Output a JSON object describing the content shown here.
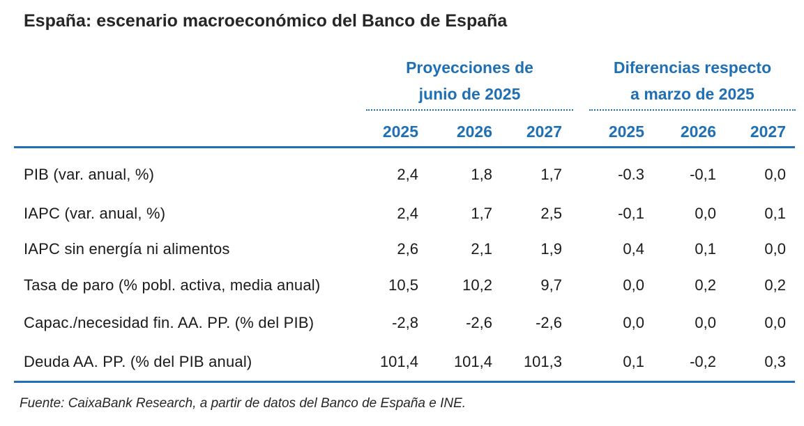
{
  "title": "España: escenario macroeconómico del Banco de España",
  "groups": [
    {
      "line1": "Proyecciones de",
      "line2": "junio de 2025"
    },
    {
      "line1": "Diferencias respecto",
      "line2": "a marzo de 2025"
    }
  ],
  "years": [
    "2025",
    "2026",
    "2027",
    "2025",
    "2026",
    "2027"
  ],
  "rows": [
    {
      "label": "PIB (var. anual, %)",
      "values": [
        "2,4",
        "1,8",
        "1,7",
        "-0.3",
        "-0,1",
        "0,0"
      ]
    },
    {
      "label": "IAPC (var. anual, %)",
      "values": [
        "2,4",
        "1,7",
        "2,5",
        "-0,1",
        "0,0",
        "0,1"
      ]
    },
    {
      "label": "IAPC sin energía ni alimentos",
      "values": [
        "2,6",
        "2,1",
        "1,9",
        "0,4",
        "0,1",
        "0,0"
      ]
    },
    {
      "label": "Tasa de paro (% pobl. activa, media anual)",
      "values": [
        "10,5",
        "10,2",
        "9,7",
        "0,0",
        "0,2",
        "0,2"
      ]
    },
    {
      "label": "Capac./necesidad fin. AA. PP. (% del PIB)",
      "values": [
        "-2,8",
        "-2,6",
        "-2,6",
        "0,0",
        "0,0",
        "0,0"
      ]
    },
    {
      "label": "Deuda AA. PP. (% del PIB anual)",
      "values": [
        "101,4",
        "101,4",
        "101,3",
        "0,1",
        "-0,2",
        "0,3"
      ]
    }
  ],
  "source": "Fuente: CaixaBank  Research, a partir  de datos del Banco de España e INE.",
  "colors": {
    "accent": "#1f6fb5",
    "text": "#1a1a1a"
  },
  "chart_data": {
    "type": "table",
    "title": "España: escenario macroeconómico del Banco de España",
    "column_groups": [
      "Proyecciones de junio de 2025",
      "Diferencias respecto a marzo de 2025"
    ],
    "columns": [
      "2025",
      "2026",
      "2027",
      "2025",
      "2026",
      "2027"
    ],
    "row_labels": [
      "PIB (var. anual, %)",
      "IAPC (var. anual, %)",
      "IAPC sin energía ni alimentos",
      "Tasa de paro (% pobl. activa, media anual)",
      "Capac./necesidad fin. AA. PP. (% del PIB)",
      "Deuda AA. PP. (% del PIB anual)"
    ],
    "values": [
      [
        2.4,
        1.8,
        1.7,
        -0.3,
        -0.1,
        0.0
      ],
      [
        2.4,
        1.7,
        2.5,
        -0.1,
        0.0,
        0.1
      ],
      [
        2.6,
        2.1,
        1.9,
        0.4,
        0.1,
        0.0
      ],
      [
        10.5,
        10.2,
        9.7,
        0.0,
        0.2,
        0.2
      ],
      [
        -2.8,
        -2.6,
        -2.6,
        0.0,
        0.0,
        0.0
      ],
      [
        101.4,
        101.4,
        101.3,
        0.1,
        -0.2,
        0.3
      ]
    ]
  }
}
